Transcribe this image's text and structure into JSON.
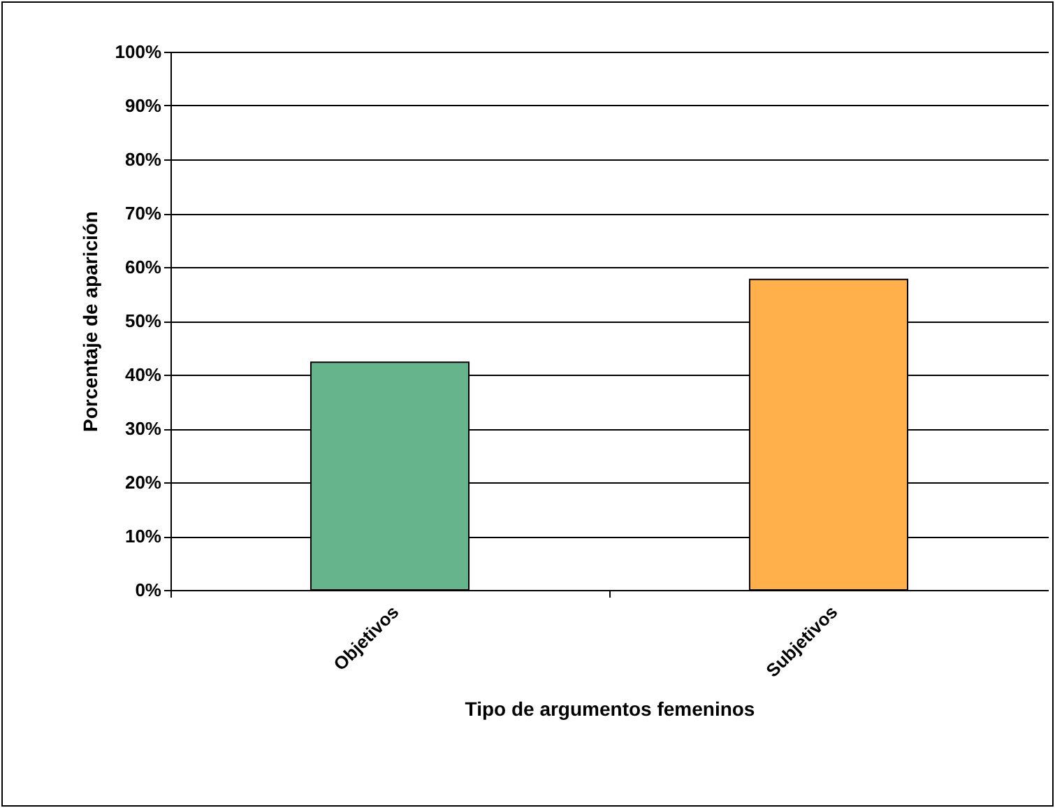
{
  "chart_data": {
    "type": "bar",
    "xlabel": "Tipo de argumentos femeninos",
    "ylabel": "Porcentaje de aparición",
    "categories": [
      "Objetivos",
      "Subjetivos"
    ],
    "values": [
      42.3,
      57.7
    ],
    "colors": [
      "#66b48c",
      "#ffb04a"
    ],
    "ylim": [
      0,
      100
    ],
    "yticks": [
      {
        "value": 0,
        "label": "0%"
      },
      {
        "value": 10,
        "label": "10%"
      },
      {
        "value": 20,
        "label": "20%"
      },
      {
        "value": 30,
        "label": "30%"
      },
      {
        "value": 40,
        "label": "40%"
      },
      {
        "value": 50,
        "label": "50%"
      },
      {
        "value": 60,
        "label": "60%"
      },
      {
        "value": 70,
        "label": "70%"
      },
      {
        "value": 80,
        "label": "80%"
      },
      {
        "value": 90,
        "label": "90%"
      },
      {
        "value": 100,
        "label": "100%"
      }
    ],
    "grid": "y"
  }
}
